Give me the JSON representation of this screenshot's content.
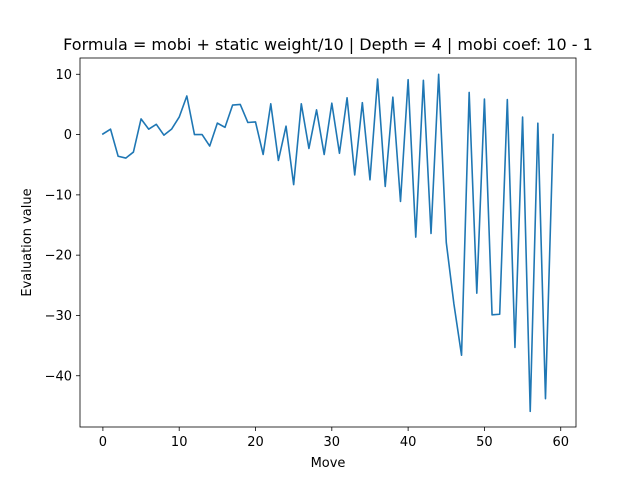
{
  "chart_data": {
    "type": "line",
    "title": "Formula = mobi + static weight/10 | Depth = 4 | mobi coef: 10 - 1",
    "xlabel": "Move",
    "ylabel": "Evaluation value",
    "xlim": [
      -3,
      62
    ],
    "ylim": [
      -48.5,
      12.7
    ],
    "xticks": [
      0,
      10,
      20,
      30,
      40,
      50,
      60
    ],
    "yticks": [
      10,
      0,
      -10,
      -20,
      -30,
      -40
    ],
    "grid": false,
    "legend": false,
    "series": [
      {
        "color": "#1f77b4",
        "x": [
          0,
          1,
          2,
          3,
          4,
          5,
          6,
          7,
          8,
          9,
          10,
          11,
          12,
          13,
          14,
          15,
          16,
          17,
          18,
          19,
          20,
          21,
          22,
          23,
          24,
          25,
          26,
          27,
          28,
          29,
          30,
          31,
          32,
          33,
          34,
          35,
          36,
          37,
          38,
          39,
          40,
          41,
          42,
          43,
          44,
          45,
          46,
          47,
          48,
          49,
          50,
          51,
          52,
          53,
          54,
          55,
          56,
          57,
          58,
          59
        ],
        "values": [
          0.1,
          0.9,
          -3.6,
          -3.9,
          -2.9,
          2.6,
          0.9,
          1.7,
          -0.1,
          0.9,
          2.9,
          6.4,
          0.0,
          0.0,
          -1.9,
          1.9,
          1.2,
          4.9,
          5.0,
          2.0,
          2.1,
          -3.3,
          5.1,
          -4.3,
          1.4,
          -8.3,
          5.1,
          -2.3,
          4.1,
          -3.3,
          5.2,
          -3.1,
          6.1,
          -6.7,
          5.3,
          -7.5,
          9.2,
          -8.6,
          6.2,
          -11.1,
          9.1,
          -17.0,
          9.0,
          -16.4,
          10.0,
          -17.9,
          -28.1,
          -36.6,
          7.0,
          -26.3,
          5.9,
          -29.9,
          -29.8,
          5.8,
          -35.3,
          2.9,
          -45.9,
          1.9,
          -43.8,
          0.0
        ]
      }
    ]
  }
}
